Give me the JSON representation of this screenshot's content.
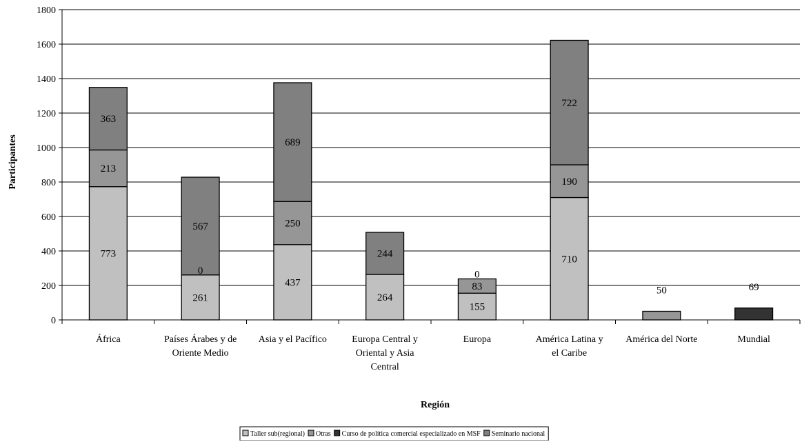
{
  "chart_data": {
    "type": "bar",
    "stacked": true,
    "title": "",
    "xlabel": "Región",
    "ylabel": "Participantes",
    "ylim": [
      0,
      1800
    ],
    "yticks": [
      0,
      200,
      400,
      600,
      800,
      1000,
      1200,
      1400,
      1600,
      1800
    ],
    "grid": true,
    "legend_position": "bottom",
    "categories": [
      "África",
      "Países Árabes y de Oriente Medio",
      "Asia y el Pacífico",
      "Europa Central y Oriental y Asia Central",
      "Europa",
      "América Latina y el Caribe",
      "América del Norte",
      "Mundial"
    ],
    "category_lines": [
      [
        "África"
      ],
      [
        "Países Árabes y de",
        "Oriente Medio"
      ],
      [
        "Asia y el Pacífico"
      ],
      [
        "Europa Central y",
        "Oriental y Asia",
        "Central"
      ],
      [
        "Europa"
      ],
      [
        "América Latina y",
        "el Caribe"
      ],
      [
        "América del Norte"
      ],
      [
        "Mundial"
      ]
    ],
    "series": [
      {
        "name": "Taller sub(regional)",
        "color": "#c0c0c0",
        "values": [
          773,
          261,
          437,
          264,
          155,
          710,
          0,
          0
        ]
      },
      {
        "name": "Otras",
        "color": "#969696",
        "values": [
          213,
          0,
          250,
          0,
          83,
          190,
          50,
          0
        ]
      },
      {
        "name": "Curso de política comercial especializado en MSF",
        "color": "#333333",
        "values": [
          0,
          0,
          0,
          0,
          0,
          0,
          0,
          69
        ]
      },
      {
        "name": "Seminario nacional",
        "color": "#808080",
        "values": [
          363,
          567,
          689,
          244,
          0,
          722,
          0,
          0
        ]
      }
    ],
    "data_labels": [
      [
        {
          "series": 0,
          "text": "773"
        },
        {
          "series": 1,
          "text": "213"
        },
        {
          "series": 3,
          "text": "363"
        }
      ],
      [
        {
          "series": 0,
          "text": "261"
        },
        {
          "series": 1,
          "text": "0",
          "at_boundary": true
        },
        {
          "series": 3,
          "text": "567"
        }
      ],
      [
        {
          "series": 0,
          "text": "437"
        },
        {
          "series": 1,
          "text": "250"
        },
        {
          "series": 3,
          "text": "689"
        }
      ],
      [
        {
          "series": 0,
          "text": "264"
        },
        {
          "series": 3,
          "text": "244"
        }
      ],
      [
        {
          "series": 0,
          "text": "155"
        },
        {
          "series": 1,
          "text": "83"
        },
        {
          "series": 3,
          "text": "0",
          "at_boundary": true
        }
      ],
      [
        {
          "series": 0,
          "text": "710"
        },
        {
          "series": 1,
          "text": "190"
        },
        {
          "series": 3,
          "text": "722"
        }
      ],
      [
        {
          "series": 1,
          "text": "50",
          "above": true
        }
      ],
      [
        {
          "series": 2,
          "text": "69",
          "above": true
        }
      ]
    ]
  }
}
